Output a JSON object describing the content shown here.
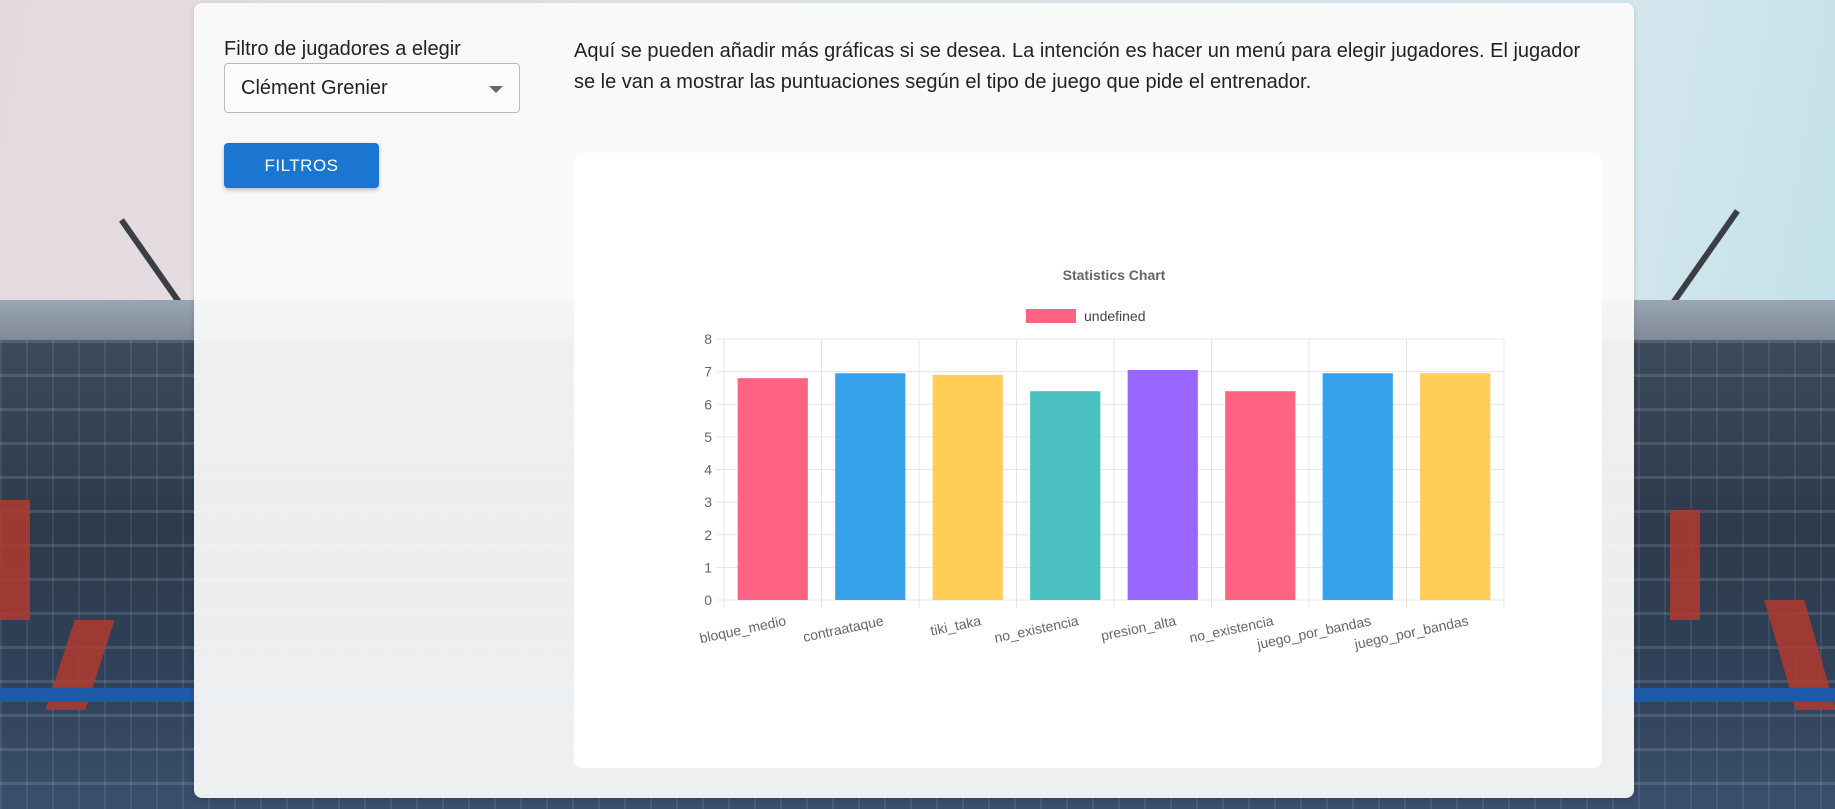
{
  "filter": {
    "label": "Filtro de jugadores a elegir",
    "selected_player": "Clément Grenier",
    "button_label": "FILTROS"
  },
  "description": "Aquí se pueden añadir más gráficas si se desea. La intención es hacer un menú para elegir jugadores. El jugador se le van a mostrar las puntuaciones según el tipo de juego que pide el entrenador.",
  "chart_data": {
    "type": "bar",
    "title": "Statistics Chart",
    "legend": [
      "undefined"
    ],
    "legend_position": "top",
    "categories": [
      "bloque_medio",
      "contraataque",
      "tiki_taka",
      "no_existencia",
      "presion_alta",
      "no_existencia",
      "juego_por_bandas",
      "juego_por_bandas"
    ],
    "values": [
      6.8,
      6.95,
      6.9,
      6.4,
      7.05,
      6.4,
      6.95,
      6.95
    ],
    "colors": [
      "#ff6384",
      "#36a2eb",
      "#ffce56",
      "#4bc0c0",
      "#9966ff",
      "#ff6384",
      "#36a2eb",
      "#ffce56"
    ],
    "ylim": [
      0,
      8
    ],
    "yticks": [
      "0",
      "1",
      "2",
      "3",
      "4",
      "5",
      "6",
      "7",
      "8"
    ],
    "grid": true,
    "xlabel": "",
    "ylabel": ""
  }
}
